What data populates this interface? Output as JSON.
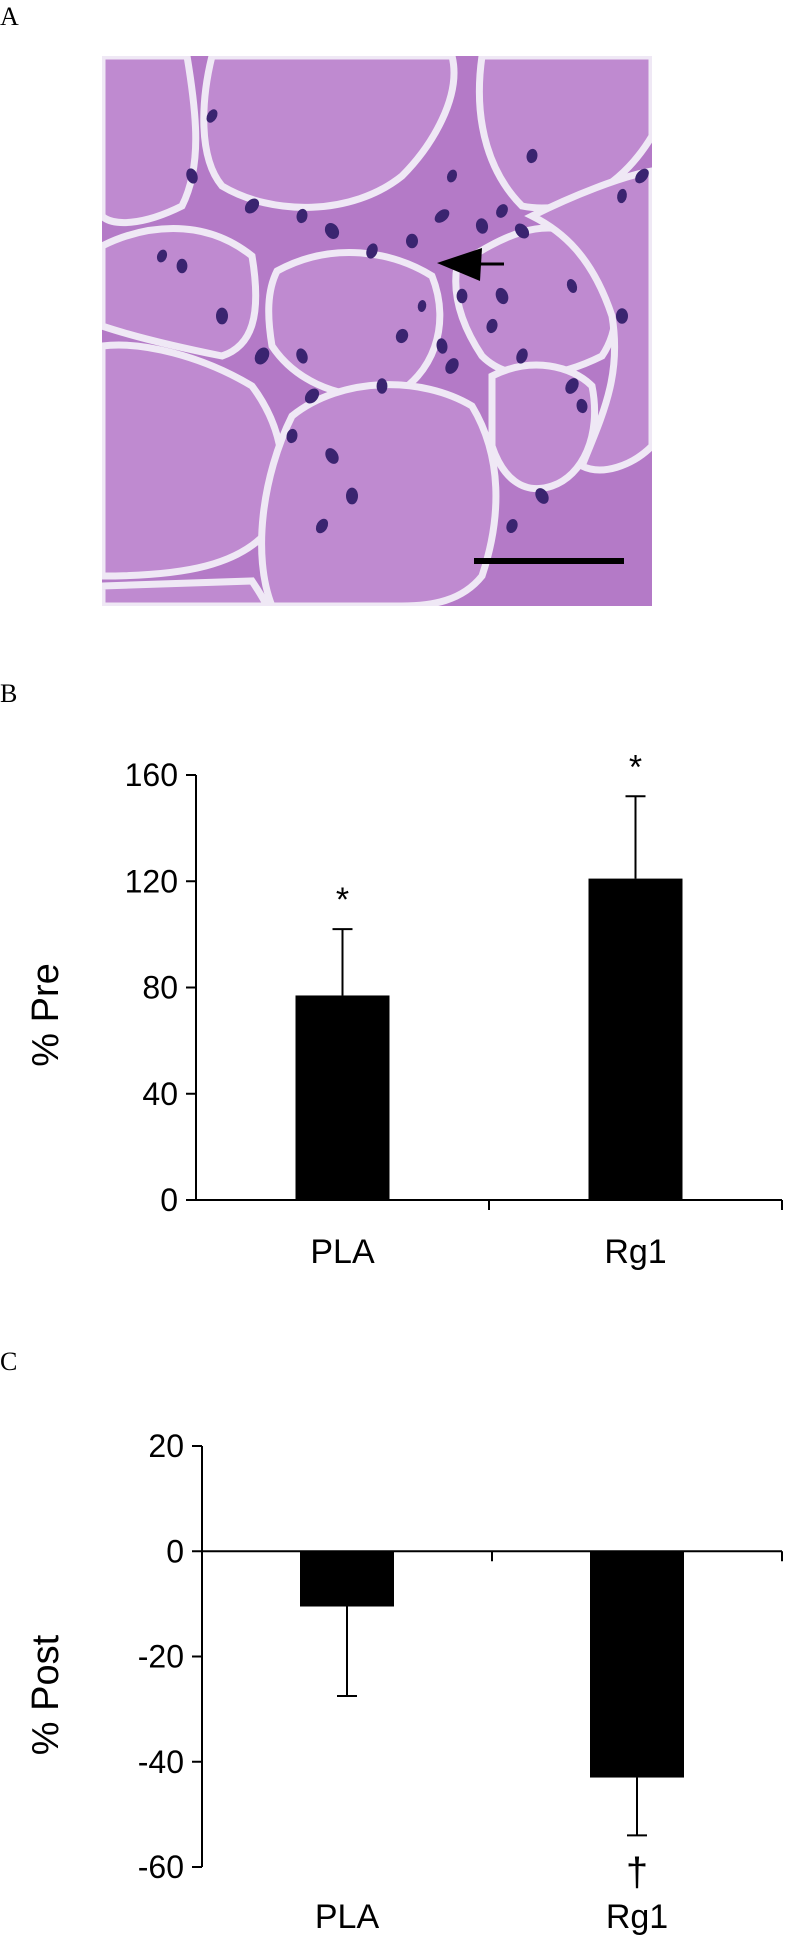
{
  "panels": {
    "a": {
      "letter": "A"
    },
    "b": {
      "letter": "B"
    },
    "c": {
      "letter": "C"
    }
  },
  "histology": {
    "tissue_color": "#b47ac7",
    "nuclei_color": "#3a2470",
    "gap_color": "#efe8f5",
    "arrow_icon": "arrowhead-left-icon",
    "scale_bar": true
  },
  "chart_data": [
    {
      "type": "bar",
      "panel": "B",
      "categories": [
        "PLA",
        "Rg1"
      ],
      "values": [
        77,
        121
      ],
      "errors": [
        25,
        31
      ],
      "significance": [
        "*",
        "*"
      ],
      "ylabel": "% Pre",
      "ylim": [
        0,
        160
      ],
      "yticks": [
        "0",
        "40",
        "80",
        "120",
        "160"
      ],
      "grid": false,
      "bar_color": "#000000"
    },
    {
      "type": "bar",
      "panel": "C",
      "categories": [
        "PLA",
        "Rg1"
      ],
      "values": [
        -10.5,
        -43
      ],
      "errors": [
        17,
        11
      ],
      "significance": [
        "",
        "†"
      ],
      "ylabel": "% Post",
      "ylim": [
        -60,
        20
      ],
      "yticks": [
        "-60",
        "-40",
        "-20",
        "0",
        "20"
      ],
      "grid": false,
      "bar_color": "#000000"
    }
  ]
}
